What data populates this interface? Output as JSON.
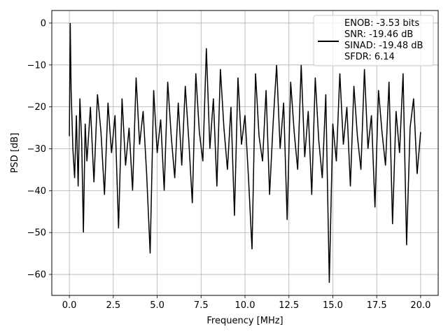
{
  "chart_data": {
    "type": "line",
    "xlabel": "Frequency [MHz]",
    "ylabel": "PSD [dB]",
    "xlim": [
      -1,
      21
    ],
    "ylim": [
      -65,
      3
    ],
    "xticks": [
      0.0,
      2.5,
      5.0,
      7.5,
      10.0,
      12.5,
      15.0,
      17.5,
      20.0
    ],
    "xtick_labels": [
      "0.0",
      "2.5",
      "5.0",
      "7.5",
      "10.0",
      "12.5",
      "15.0",
      "17.5",
      "20.0"
    ],
    "yticks": [
      0,
      -10,
      -20,
      -30,
      -40,
      -50,
      -60
    ],
    "ytick_labels": [
      "0",
      "−10",
      "−20",
      "−30",
      "−40",
      "−50",
      "−60"
    ],
    "grid": true,
    "legend": {
      "placement": "top-right",
      "entries": [
        "ENOB: -3.53 bits",
        "SNR: -19.46 dB",
        "SINAD: -19.48 dB",
        "SFDR: 6.14"
      ]
    },
    "series": [
      {
        "color": "#000000",
        "x": [
          0,
          0.05,
          0.1,
          0.2,
          0.3,
          0.4,
          0.5,
          0.6,
          0.7,
          0.8,
          0.9,
          1.0,
          1.2,
          1.4,
          1.6,
          1.8,
          2.0,
          2.2,
          2.4,
          2.6,
          2.8,
          3.0,
          3.2,
          3.4,
          3.6,
          3.8,
          4.0,
          4.2,
          4.4,
          4.6,
          4.8,
          5.0,
          5.2,
          5.4,
          5.6,
          5.8,
          6.0,
          6.2,
          6.4,
          6.6,
          6.8,
          7.0,
          7.2,
          7.4,
          7.6,
          7.8,
          8.0,
          8.2,
          8.4,
          8.6,
          8.8,
          9.0,
          9.2,
          9.4,
          9.6,
          9.8,
          10.0,
          10.2,
          10.4,
          10.6,
          10.8,
          11.0,
          11.2,
          11.4,
          11.6,
          11.8,
          12.0,
          12.2,
          12.4,
          12.6,
          12.8,
          13.0,
          13.2,
          13.4,
          13.6,
          13.8,
          14.0,
          14.2,
          14.4,
          14.6,
          14.8,
          15.0,
          15.2,
          15.4,
          15.6,
          15.8,
          16.0,
          16.2,
          16.4,
          16.6,
          16.8,
          17.0,
          17.2,
          17.4,
          17.6,
          17.8,
          18.0,
          18.2,
          18.4,
          18.6,
          18.8,
          19.0,
          19.2,
          19.4,
          19.6,
          19.8,
          20.0
        ],
        "y": [
          -27,
          0,
          -16,
          -30,
          -37,
          -22,
          -39,
          -18,
          -28,
          -50,
          -24,
          -33,
          -20,
          -38,
          -17,
          -26,
          -41,
          -19,
          -31,
          -22,
          -49,
          -18,
          -34,
          -25,
          -40,
          -13,
          -29,
          -21,
          -36,
          -55,
          -16,
          -31,
          -23,
          -40,
          -14,
          -27,
          -37,
          -19,
          -34,
          -15,
          -28,
          -43,
          -12,
          -26,
          -33,
          -6,
          -30,
          -18,
          -39,
          -11,
          -25,
          -35,
          -20,
          -46,
          -13,
          -29,
          -22,
          -37,
          -54,
          -12,
          -27,
          -33,
          -16,
          -41,
          -24,
          -10,
          -30,
          -19,
          -47,
          -14,
          -26,
          -35,
          -10,
          -32,
          -21,
          -41,
          -13,
          -28,
          -37,
          -17,
          -62,
          -24,
          -33,
          -12,
          -29,
          -20,
          -39,
          -15,
          -27,
          -35,
          -11,
          -30,
          -22,
          -44,
          -16,
          -26,
          -34,
          -14,
          -48,
          -21,
          -31,
          -12,
          -53,
          -25,
          -18,
          -36,
          -26
        ]
      }
    ]
  }
}
